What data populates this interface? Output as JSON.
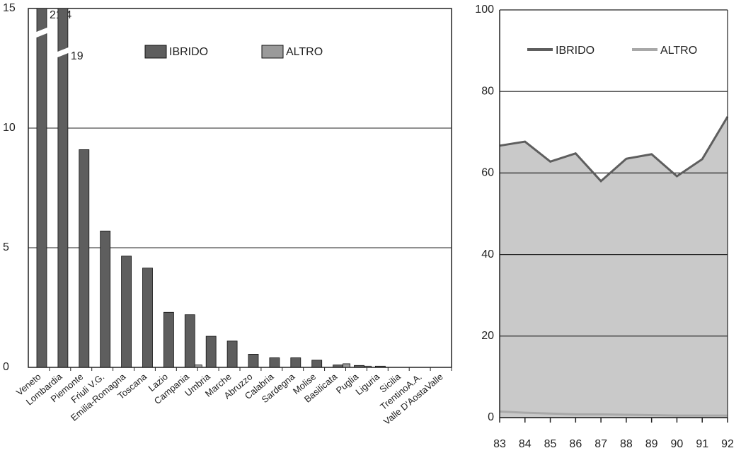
{
  "chart_data": [
    {
      "type": "bar",
      "categories": [
        "Veneto",
        "Lombardia",
        "Piemonte",
        "Friuli V.G.",
        "Emilia-Romagna",
        "Toscana",
        "Lazio",
        "Campania",
        "Umbria",
        "Marche",
        "Abruzzo",
        "Calabria",
        "Sardegna",
        "Molise",
        "Basilicata",
        "Puglia",
        "Liguria",
        "Sicilia",
        "TrentinoA.A.",
        "Valle D'AostaValle"
      ],
      "series": [
        {
          "name": "IBRIDO",
          "color": "#5e5e5e",
          "values": [
            21.4,
            19,
            9.1,
            5.7,
            4.65,
            4.15,
            2.3,
            2.2,
            1.3,
            1.1,
            0.55,
            0.4,
            0.4,
            0.3,
            0.1,
            0.08,
            0.05,
            0,
            0,
            0
          ],
          "value_labels": [
            "21,4",
            "19",
            null,
            null,
            null,
            null,
            null,
            null,
            null,
            null,
            null,
            null,
            null,
            null,
            null,
            null,
            null,
            null,
            null,
            null
          ]
        },
        {
          "name": "ALTRO",
          "color": "#9a9a9a",
          "values": [
            0,
            0,
            0,
            0,
            0,
            0,
            0,
            0.1,
            0,
            0,
            0,
            0,
            0,
            0,
            0.15,
            0.05,
            0,
            0,
            0,
            0
          ]
        }
      ],
      "ylim": [
        0,
        15
      ],
      "yticks": [
        0,
        5,
        10,
        15
      ],
      "grid": true,
      "legend": "top"
    },
    {
      "type": "area",
      "x": [
        83,
        84,
        85,
        86,
        87,
        88,
        89,
        90,
        91,
        92
      ],
      "series": [
        {
          "name": "IBRIDO",
          "color": "#5e5e5e",
          "values": [
            66.7,
            67.7,
            62.8,
            64.8,
            58,
            63.5,
            64.6,
            59.2,
            63.4,
            73.8
          ]
        },
        {
          "name": "ALTRO",
          "color": "#a8a8a8",
          "values": [
            1.5,
            1.2,
            1,
            0.8,
            0.8,
            0.7,
            0.6,
            0.5,
            0.5,
            0.5
          ]
        }
      ],
      "xlim": [
        83,
        92
      ],
      "xticks": [
        83,
        84,
        85,
        86,
        87,
        88,
        89,
        90,
        91,
        92
      ],
      "ylim": [
        0,
        100
      ],
      "yticks": [
        0,
        20,
        40,
        60,
        80,
        100
      ],
      "grid": true,
      "legend": "top"
    }
  ]
}
